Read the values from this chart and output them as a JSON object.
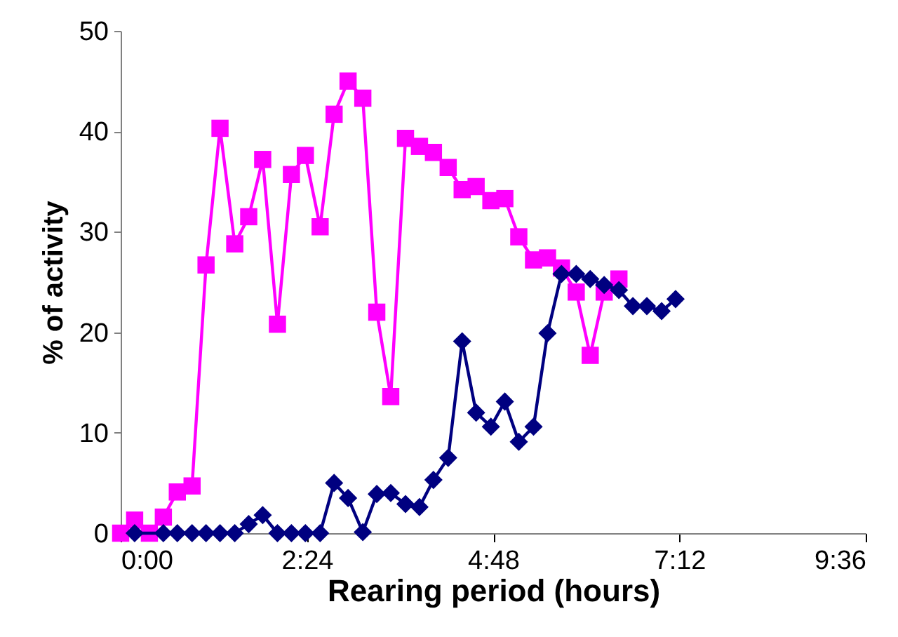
{
  "chart_data": {
    "type": "line",
    "xlabel": "Rearing period (hours)",
    "ylabel": "% of activity",
    "xlim": [
      0,
      9.6
    ],
    "xticks": [
      {
        "value": 0,
        "label": "0:00"
      },
      {
        "value": 2.4,
        "label": "2:24"
      },
      {
        "value": 4.8,
        "label": "4:48"
      },
      {
        "value": 7.2,
        "label": "7:12"
      },
      {
        "value": 9.6,
        "label": "9:36"
      }
    ],
    "ylim": [
      0,
      50
    ],
    "yticks": [
      0,
      10,
      20,
      30,
      40,
      50
    ],
    "grid": false,
    "line_style": "solid",
    "x": [
      0,
      0.18,
      0.37,
      0.55,
      0.73,
      0.92,
      1.1,
      1.28,
      1.47,
      1.65,
      1.83,
      2.02,
      2.2,
      2.38,
      2.57,
      2.75,
      2.93,
      3.12,
      3.3,
      3.48,
      3.67,
      3.85,
      4.03,
      4.22,
      4.4,
      4.58,
      4.77,
      4.95,
      5.13,
      5.32,
      5.5,
      5.68,
      5.87,
      6.05,
      6.23,
      6.42,
      6.6,
      6.78,
      6.97,
      7.15
    ],
    "series": [
      {
        "color": "#ff00ff",
        "marker": "square",
        "values": [
          0,
          1.3,
          0,
          1.6,
          4.1,
          4.7,
          26.7,
          40.3,
          28.8,
          31.5,
          37.2,
          20.8,
          35.7,
          37.6,
          30.5,
          41.7,
          45,
          43.3,
          22,
          13.6,
          39.3,
          38.5,
          37.9,
          36.4,
          34.2,
          34.5,
          33.1,
          33.3,
          29.5,
          27.2,
          27.4,
          26.4,
          24,
          17.7,
          24,
          25.3,
          null,
          null,
          null,
          null
        ]
      },
      {
        "color": "#000080",
        "marker": "diamond",
        "values": [
          null,
          0,
          null,
          0,
          0,
          0,
          0,
          0,
          0,
          0.9,
          1.8,
          0,
          0,
          0,
          0,
          5,
          3.5,
          0.1,
          3.9,
          4,
          2.9,
          2.6,
          5.3,
          7.5,
          19.1,
          12,
          10.6,
          13.1,
          9.1,
          10.6,
          19.9,
          25.8,
          25.8,
          25.3,
          24.7,
          24.2,
          22.6,
          22.6,
          22.1,
          23.3
        ]
      }
    ]
  }
}
